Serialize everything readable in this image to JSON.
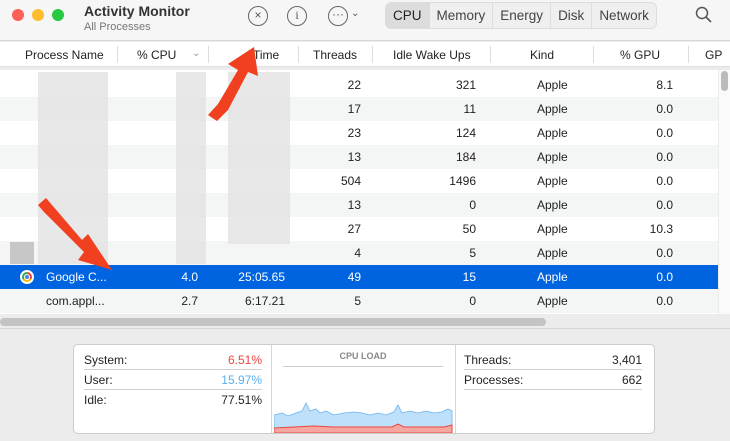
{
  "window": {
    "title": "Activity Monitor",
    "subtitle": "All Processes"
  },
  "toolbar": {
    "stop_icon": "x-circle-icon",
    "info_icon": "info-icon",
    "more_icon": "ellipsis-circle-icon",
    "search_icon": "magnifier-icon",
    "tabs": [
      {
        "label": "CPU",
        "active": true
      },
      {
        "label": "Memory"
      },
      {
        "label": "Energy"
      },
      {
        "label": "Disk"
      },
      {
        "label": "Network"
      }
    ]
  },
  "table": {
    "columns": [
      "Process Name",
      "% CPU",
      "CPU Time",
      "Threads",
      "Idle Wake Ups",
      "Kind",
      "% GPU",
      "GP"
    ],
    "visible_header_time": "Time",
    "sorted_column": "% CPU",
    "rows": [
      {
        "name": "",
        "cpu": "",
        "time": "",
        "threads": "22",
        "idle": "321",
        "kind": "Apple",
        "gpu": "8.1"
      },
      {
        "name": "",
        "cpu": "",
        "time": "",
        "threads": "17",
        "idle": "11",
        "kind": "Apple",
        "gpu": "0.0"
      },
      {
        "name": "",
        "cpu": "",
        "time": "",
        "threads": "23",
        "idle": "124",
        "kind": "Apple",
        "gpu": "0.0"
      },
      {
        "name": "",
        "cpu": "",
        "time": "",
        "threads": "13",
        "idle": "184",
        "kind": "Apple",
        "gpu": "0.0"
      },
      {
        "name": "",
        "cpu": "",
        "time": "",
        "threads": "504",
        "idle": "1496",
        "kind": "Apple",
        "gpu": "0.0"
      },
      {
        "name": "",
        "cpu": "",
        "time": "",
        "threads": "13",
        "idle": "0",
        "kind": "Apple",
        "gpu": "0.0"
      },
      {
        "name": "",
        "cpu": "",
        "time": "",
        "threads": "27",
        "idle": "50",
        "kind": "Apple",
        "gpu": "10.3"
      },
      {
        "name": "",
        "cpu": "",
        "time": "",
        "threads": "4",
        "idle": "5",
        "kind": "Apple",
        "gpu": "0.0"
      },
      {
        "name": "Google C...",
        "cpu": "4.0",
        "time": "25:05.65",
        "threads": "49",
        "idle": "15",
        "kind": "Apple",
        "gpu": "0.0",
        "selected": true,
        "icon": "chrome-icon"
      },
      {
        "name": "com.appl...",
        "cpu": "2.7",
        "time": "6:17.21",
        "threads": "5",
        "idle": "0",
        "kind": "Apple",
        "gpu": "0.0"
      }
    ]
  },
  "summary": {
    "system_label": "System:",
    "system": "6.51%",
    "system_color": "#e8453c",
    "user_label": "User:",
    "user": "15.97%",
    "user_color": "#5aaef0",
    "idle_label": "Idle:",
    "idle": "77.51%",
    "chart_title": "CPU LOAD",
    "threads_label": "Threads:",
    "threads": "3,401",
    "processes_label": "Processes:",
    "processes": "662"
  },
  "accent": "#0064e1"
}
